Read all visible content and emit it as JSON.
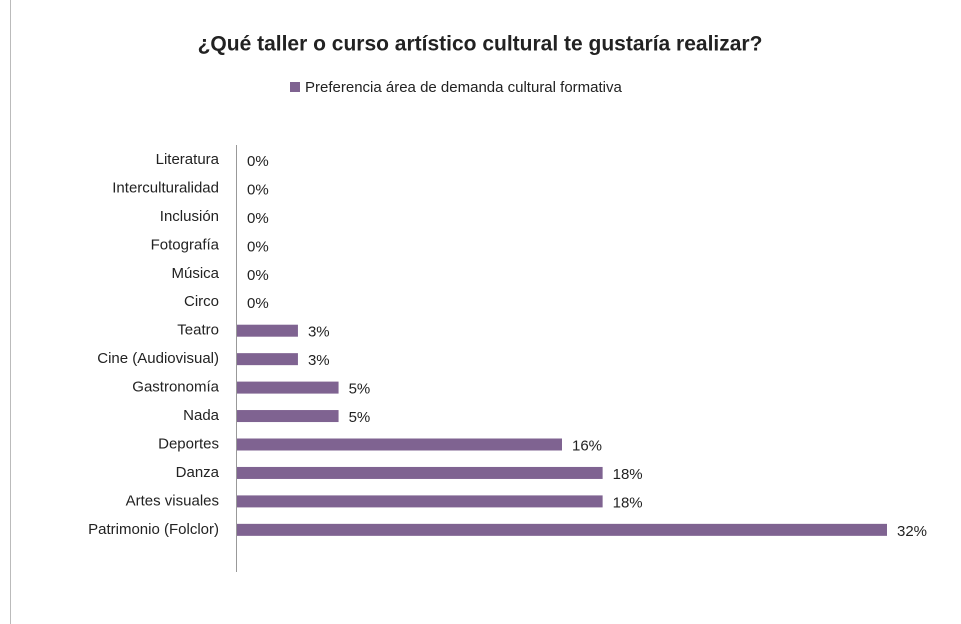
{
  "chart_data": {
    "type": "bar",
    "orientation": "horizontal",
    "title": "¿Qué taller o curso artístico cultural te gustaría realizar?",
    "categories": [
      "Literatura",
      "Interculturalidad",
      "Inclusión",
      "Fotografía",
      "Música",
      "Circo",
      "Teatro",
      "Cine (Audiovisual)",
      "Gastronomía",
      "Nada",
      "Deportes",
      "Danza",
      "Artes visuales",
      "Patrimonio (Folclor)"
    ],
    "series": [
      {
        "name": "Preferencia área de demanda cultural formativa",
        "color": "#7f6391",
        "values": [
          0,
          0,
          0,
          0,
          0,
          0,
          3,
          3,
          5,
          5,
          16,
          18,
          18,
          32
        ],
        "value_labels": [
          "0%",
          "0%",
          "0%",
          "0%",
          "0%",
          "0%",
          "3%",
          "3%",
          "5%",
          "5%",
          "16%",
          "18%",
          "18%",
          "32%"
        ]
      }
    ],
    "legend": "top"
  }
}
